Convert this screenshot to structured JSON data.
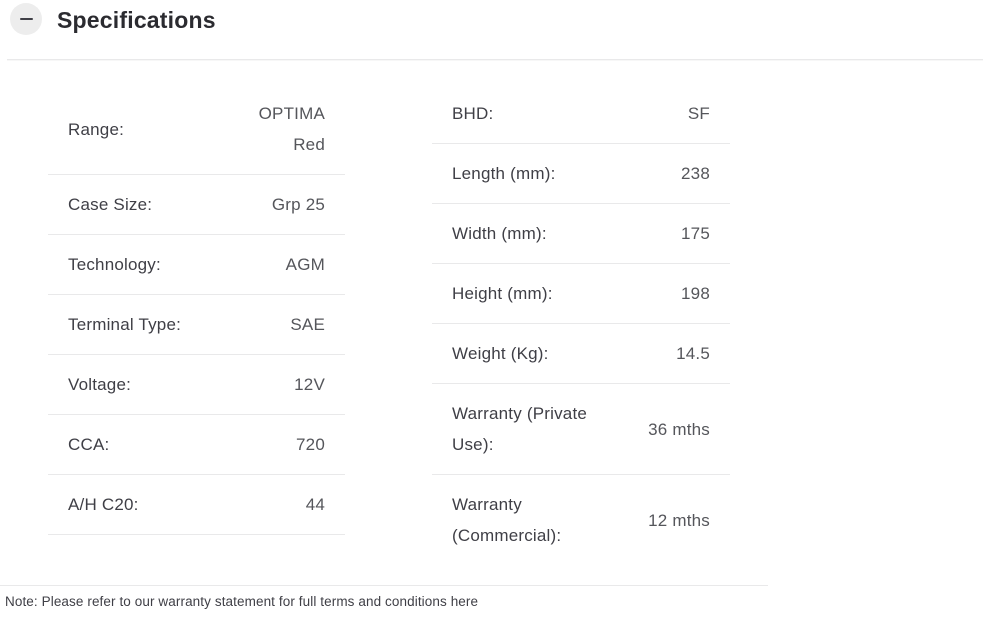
{
  "header": {
    "title": "Specifications",
    "toggle_icon": "minus-icon",
    "toggle_state": "expanded"
  },
  "spec_columns": {
    "left": [
      {
        "label": "Range:",
        "value": "OPTIMA Red"
      },
      {
        "label": "Case Size:",
        "value": "Grp 25"
      },
      {
        "label": "Technology:",
        "value": "AGM"
      },
      {
        "label": "Terminal Type:",
        "value": "SAE"
      },
      {
        "label": "Voltage:",
        "value": "12V"
      },
      {
        "label": "CCA:",
        "value": "720"
      },
      {
        "label": "A/H C20:",
        "value": "44"
      }
    ],
    "right": [
      {
        "label": "BHD:",
        "value": "SF"
      },
      {
        "label": "Length (mm):",
        "value": "238"
      },
      {
        "label": "Width (mm):",
        "value": "175"
      },
      {
        "label": "Height (mm):",
        "value": "198"
      },
      {
        "label": "Weight (Kg):",
        "value": "14.5"
      },
      {
        "label": "Warranty (Private Use):",
        "value": "36 mths"
      },
      {
        "label": "Warranty (Commercial):",
        "value": "12 mths"
      }
    ]
  },
  "note": {
    "text": "Note: Please refer to our warranty statement for full terms and conditions ",
    "link_text": "here"
  },
  "colors": {
    "title": "#2b2b30",
    "text-dark": "#3f3f46",
    "text-mid": "#55565b",
    "line": "#e9e9ea",
    "circle-bg": "#ededed"
  }
}
